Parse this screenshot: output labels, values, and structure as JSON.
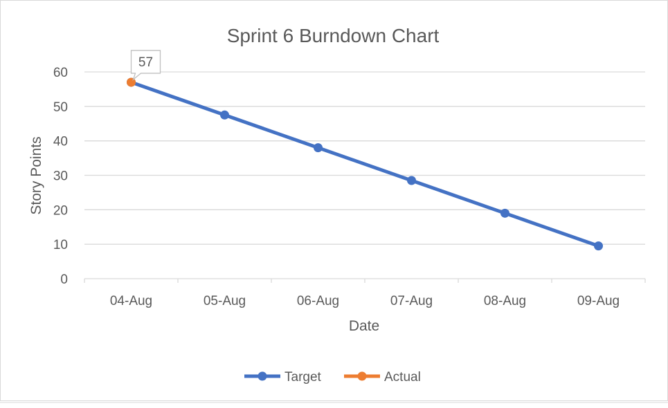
{
  "chart_data": {
    "type": "line",
    "title": "Sprint 6 Burndown Chart",
    "xlabel": "Date",
    "ylabel": "Story Points",
    "categories": [
      "04-Aug",
      "05-Aug",
      "06-Aug",
      "07-Aug",
      "08-Aug",
      "09-Aug"
    ],
    "ylim": [
      0,
      60
    ],
    "yticks": [
      0,
      10,
      20,
      30,
      40,
      50,
      60
    ],
    "grid": true,
    "legend_position": "bottom",
    "series": [
      {
        "name": "Target",
        "color": "#4472c4",
        "values": [
          57,
          47.5,
          38,
          28.5,
          19,
          9.5
        ]
      },
      {
        "name": "Actual",
        "color": "#ed7d31",
        "values": [
          57,
          null,
          null,
          null,
          null,
          null
        ],
        "data_labels": [
          {
            "index": 0,
            "text": "57"
          }
        ]
      }
    ]
  }
}
